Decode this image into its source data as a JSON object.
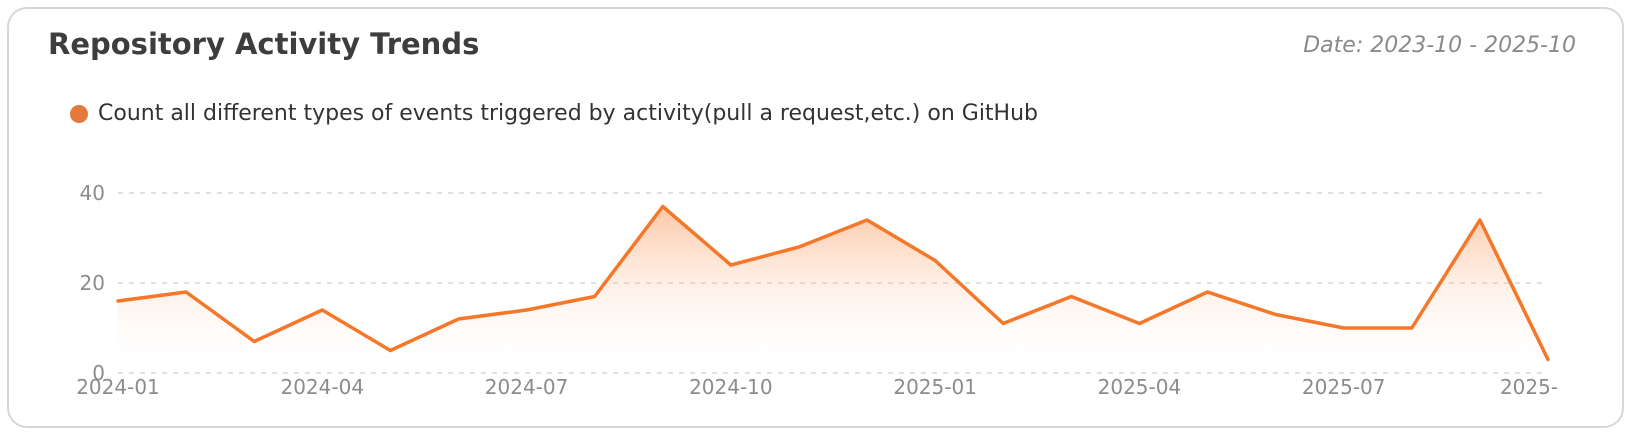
{
  "card": {
    "title": "Repository Activity Trends",
    "date_range": "Date: 2023-10 - 2025-10"
  },
  "legend": {
    "label": "Count all different types of events triggered by activity(pull a request,etc.) on GitHub"
  },
  "colors": {
    "line": "#f5772a",
    "legend_dot": "#e4793c",
    "area_top": "rgba(247,123,44,0.5)",
    "area_bottom": "rgba(255,255,255,0)",
    "grid": "#e0e0e0",
    "axis_text": "#8c8c8c"
  },
  "chart_data": {
    "type": "area",
    "title": "Repository Activity Trends",
    "x": [
      "2024-01",
      "2024-02",
      "2024-03",
      "2024-04",
      "2024-05",
      "2024-06",
      "2024-07",
      "2024-08",
      "2024-09",
      "2024-10",
      "2024-11",
      "2024-12",
      "2025-01",
      "2025-02",
      "2025-03",
      "2025-04",
      "2025-05",
      "2025-06",
      "2025-07",
      "2025-08",
      "2025-09",
      "2025-10"
    ],
    "values": [
      16,
      18,
      7,
      14,
      5,
      12,
      14,
      17,
      37,
      24,
      28,
      34,
      25,
      11,
      17,
      11,
      18,
      13,
      10,
      10,
      34,
      3
    ],
    "series_name": "Count all different types of events triggered by activity(pull a request,etc.) on GitHub",
    "xlabel": "",
    "ylabel": "",
    "ylim": [
      0,
      40
    ],
    "y_ticks": [
      0,
      20,
      40
    ],
    "y_tick_labels": [
      "0",
      "20",
      "40"
    ],
    "x_tick_indices": [
      0,
      3,
      6,
      9,
      12,
      15,
      18,
      21
    ],
    "x_tick_labels": [
      "2024-01",
      "2024-04",
      "2024-07",
      "2024-10",
      "2025-01",
      "2025-04",
      "2025-07",
      "2025-"
    ],
    "grid": "horizontal-dashed",
    "legend_position": "top-left",
    "area_gradient": true
  }
}
